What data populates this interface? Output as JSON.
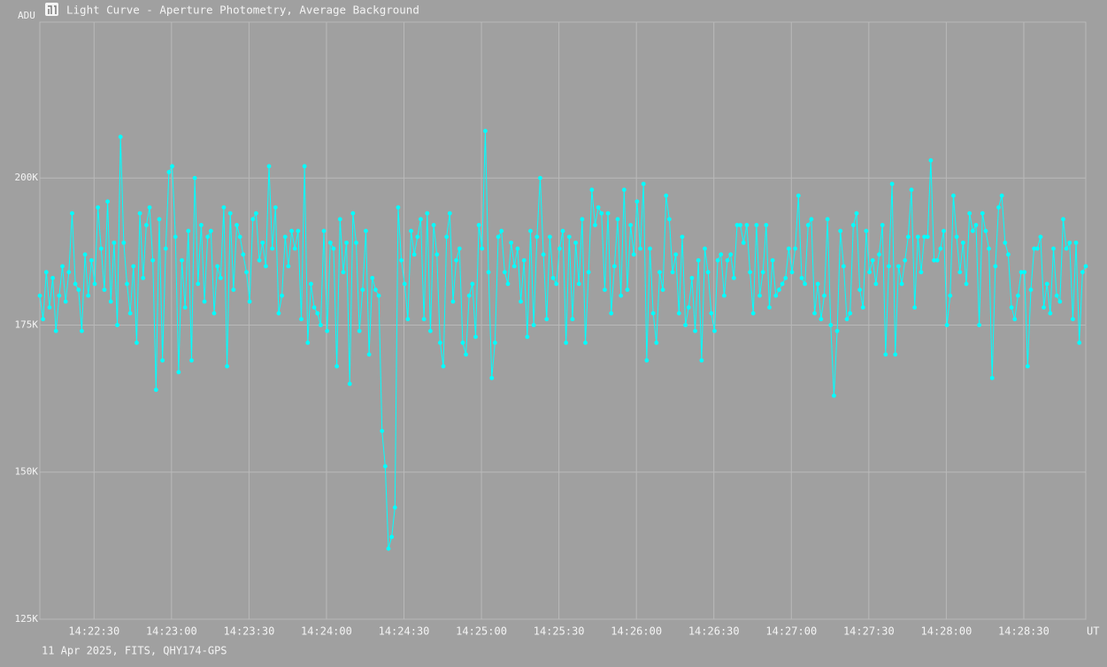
{
  "chart_data": {
    "type": "line",
    "title": "Light Curve - Aperture Photometry, Average Background",
    "y_label": "ADU",
    "x_label": "UT",
    "footer": "11 Apr 2025, FITS, QHY174-GPS",
    "grid": true,
    "xlim": [
      51729,
      52134
    ],
    "ylim": [
      125000,
      226500
    ],
    "xticks": [
      {
        "value": 51750,
        "label": "14:22:30"
      },
      {
        "value": 51780,
        "label": "14:23:00"
      },
      {
        "value": 51810,
        "label": "14:23:30"
      },
      {
        "value": 51840,
        "label": "14:24:00"
      },
      {
        "value": 51870,
        "label": "14:24:30"
      },
      {
        "value": 51900,
        "label": "14:25:00"
      },
      {
        "value": 51930,
        "label": "14:25:30"
      },
      {
        "value": 51960,
        "label": "14:26:00"
      },
      {
        "value": 51990,
        "label": "14:26:30"
      },
      {
        "value": 52020,
        "label": "14:27:00"
      },
      {
        "value": 52050,
        "label": "14:27:30"
      },
      {
        "value": 52080,
        "label": "14:28:00"
      },
      {
        "value": 52110,
        "label": "14:28:30"
      }
    ],
    "yticks": [
      {
        "value": 125000,
        "label": "125K"
      },
      {
        "value": 150000,
        "label": "150K"
      },
      {
        "value": 175000,
        "label": "175K"
      },
      {
        "value": 200000,
        "label": "200K"
      }
    ],
    "color": "#00ffff",
    "x": [
      51729,
      51730.25,
      51731.5,
      51732.75,
      51734,
      51735.25,
      51736.5,
      51737.75,
      51739,
      51740.25,
      51741.5,
      51742.75,
      51744,
      51745.25,
      51746.5,
      51747.75,
      51749,
      51750.25,
      51751.5,
      51752.75,
      51754,
      51755.25,
      51756.5,
      51757.75,
      51759,
      51760.25,
      51761.5,
      51762.75,
      51764,
      51765.25,
      51766.5,
      51767.75,
      51769,
      51770.25,
      51771.5,
      51772.75,
      51774,
      51775.25,
      51776.5,
      51777.75,
      51779,
      51780.25,
      51781.5,
      51782.75,
      51784,
      51785.25,
      51786.5,
      51787.75,
      51789,
      51790.25,
      51791.5,
      51792.75,
      51794,
      51795.25,
      51796.5,
      51797.75,
      51799,
      51800.25,
      51801.5,
      51802.75,
      51804,
      51805.25,
      51806.5,
      51807.75,
      51809,
      51810.25,
      51811.5,
      51812.75,
      51814,
      51815.25,
      51816.5,
      51817.75,
      51819,
      51820.25,
      51821.5,
      51822.75,
      51824,
      51825.25,
      51826.5,
      51827.75,
      51829,
      51830.25,
      51831.5,
      51832.75,
      51834,
      51835.25,
      51836.5,
      51837.75,
      51839,
      51840.25,
      51841.5,
      51842.75,
      51844,
      51845.25,
      51846.5,
      51847.75,
      51849,
      51850.25,
      51851.5,
      51852.75,
      51854,
      51855.25,
      51856.5,
      51857.75,
      51859,
      51860.25,
      51861.5,
      51862.75,
      51864,
      51865.25,
      51866.5,
      51867.75,
      51869,
      51870.25,
      51871.5,
      51872.75,
      51874,
      51875.25,
      51876.5,
      51877.75,
      51879,
      51880.25,
      51881.5,
      51882.75,
      51884,
      51885.25,
      51886.5,
      51887.75,
      51889,
      51890.25,
      51891.5,
      51892.75,
      51894,
      51895.25,
      51896.5,
      51897.75,
      51899,
      51900.25,
      51901.5,
      51902.75,
      51904,
      51905.25,
      51906.5,
      51907.75,
      51909,
      51910.25,
      51911.5,
      51912.75,
      51914,
      51915.25,
      51916.5,
      51917.75,
      51919,
      51920.25,
      51921.5,
      51922.75,
      51924,
      51925.25,
      51926.5,
      51927.75,
      51929,
      51930.25,
      51931.5,
      51932.75,
      51934,
      51935.25,
      51936.5,
      51937.75,
      51939,
      51940.25,
      51941.5,
      51942.75,
      51944,
      51945.25,
      51946.5,
      51947.75,
      51949,
      51950.25,
      51951.5,
      51952.75,
      51954,
      51955.25,
      51956.5,
      51957.75,
      51959,
      51960.25,
      51961.5,
      51962.75,
      51964,
      51965.25,
      51966.5,
      51967.75,
      51969,
      51970.25,
      51971.5,
      51972.75,
      51974,
      51975.25,
      51976.5,
      51977.75,
      51979,
      51980.25,
      51981.5,
      51982.75,
      51984,
      51985.25,
      51986.5,
      51987.75,
      51989,
      51990.25,
      51991.5,
      51992.75,
      51994,
      51995.25,
      51996.5,
      51997.75,
      51999,
      52000.25,
      52001.5,
      52002.75,
      52004,
      52005.25,
      52006.5,
      52007.75,
      52009,
      52010.25,
      52011.5,
      52012.75,
      52014,
      52015.25,
      52016.5,
      52017.75,
      52019,
      52020.25,
      52021.5,
      52022.75,
      52024,
      52025.25,
      52026.5,
      52027.75,
      52029,
      52030.25,
      52031.5,
      52032.75,
      52034,
      52035.25,
      52036.5,
      52037.75,
      52039,
      52040.25,
      52041.5,
      52042.75,
      52044,
      52045.25,
      52046.5,
      52047.75,
      52049,
      52050.25,
      52051.5,
      52052.75,
      52054,
      52055.25,
      52056.5,
      52057.75,
      52059,
      52060.25,
      52061.5,
      52062.75,
      52064,
      52065.25,
      52066.5,
      52067.75,
      52069,
      52070.25,
      52071.5,
      52072.75,
      52074,
      52075.25,
      52076.5,
      52077.75,
      52079,
      52080.25,
      52081.5,
      52082.75,
      52084,
      52085.25,
      52086.5,
      52087.75,
      52089,
      52090.25,
      52091.5,
      52092.75,
      52094,
      52095.25,
      52096.5,
      52097.75,
      52099,
      52100.25,
      52101.5,
      52102.75,
      52104,
      52105.25,
      52106.5,
      52107.75,
      52109,
      52110.25,
      52111.5,
      52112.75,
      52114,
      52115.25,
      52116.5,
      52117.75,
      52119,
      52120.25,
      52121.5,
      52122.75,
      52124,
      52125.25,
      52126.5,
      52127.75,
      52129,
      52130.25,
      52131.5,
      52132.75,
      52134
    ],
    "values": [
      180000,
      176000,
      184000,
      178000,
      183000,
      174000,
      180000,
      185000,
      179000,
      184000,
      194000,
      182000,
      181000,
      174000,
      187000,
      180000,
      186000,
      182000,
      195000,
      188000,
      181000,
      196000,
      179000,
      189000,
      175000,
      207000,
      189000,
      182000,
      177000,
      185000,
      172000,
      194000,
      183000,
      192000,
      195000,
      186000,
      164000,
      193000,
      169000,
      188000,
      201000,
      202000,
      190000,
      167000,
      186000,
      178000,
      191000,
      169000,
      200000,
      182000,
      192000,
      179000,
      190000,
      191000,
      177000,
      185000,
      183000,
      195000,
      168000,
      194000,
      181000,
      192000,
      190000,
      187000,
      184000,
      179000,
      193000,
      194000,
      186000,
      189000,
      185000,
      202000,
      188000,
      195000,
      177000,
      180000,
      190000,
      185000,
      191000,
      188000,
      191000,
      176000,
      202000,
      172000,
      182000,
      178000,
      177000,
      175000,
      191000,
      174000,
      189000,
      188000,
      168000,
      193000,
      184000,
      189000,
      165000,
      194000,
      189000,
      174000,
      181000,
      191000,
      170000,
      183000,
      181000,
      180000,
      157000,
      151000,
      137000,
      139000,
      144000,
      195000,
      186000,
      182000,
      176000,
      191000,
      187000,
      190000,
      193000,
      176000,
      194000,
      174000,
      192000,
      187000,
      172000,
      168000,
      190000,
      194000,
      179000,
      186000,
      188000,
      172000,
      170000,
      180000,
      182000,
      173000,
      192000,
      188000,
      208000,
      184000,
      166000,
      172000,
      190000,
      191000,
      184000,
      182000,
      189000,
      185000,
      188000,
      179000,
      186000,
      173000,
      191000,
      175000,
      190000,
      200000,
      187000,
      176000,
      190000,
      183000,
      182000,
      188000,
      191000,
      172000,
      190000,
      176000,
      189000,
      182000,
      193000,
      172000,
      184000,
      198000,
      192000,
      195000,
      194000,
      181000,
      194000,
      177000,
      185000,
      193000,
      180000,
      198000,
      181000,
      192000,
      187000,
      196000,
      188000,
      199000,
      169000,
      188000,
      177000,
      172000,
      184000,
      181000,
      197000,
      193000,
      184000,
      187000,
      177000,
      190000,
      175000,
      178000,
      183000,
      174000,
      186000,
      169000,
      188000,
      184000,
      177000,
      174000,
      186000,
      187000,
      180000,
      186000,
      187000,
      183000,
      192000,
      192000,
      189000,
      192000,
      184000,
      177000,
      192000,
      180000,
      184000,
      192000,
      178000,
      186000,
      180000,
      181000,
      182000,
      183000,
      188000,
      184000,
      188000,
      197000,
      183000,
      182000,
      192000,
      193000,
      177000,
      182000,
      176000,
      180000,
      193000,
      175000,
      163000,
      174000,
      191000,
      185000,
      176000,
      177000,
      192000,
      194000,
      181000,
      178000,
      191000,
      184000,
      186000,
      182000,
      187000,
      192000,
      170000,
      185000,
      199000,
      170000,
      185000,
      182000,
      186000,
      190000,
      198000,
      178000,
      190000,
      184000,
      190000,
      190000,
      203000,
      186000,
      186000,
      188000,
      191000,
      175000,
      180000,
      197000,
      190000,
      184000,
      189000,
      182000,
      194000,
      191000,
      192000,
      175000,
      194000,
      191000,
      188000,
      166000,
      185000,
      195000,
      197000,
      189000,
      187000,
      178000,
      176000,
      180000,
      184000,
      184000,
      168000,
      181000,
      188000,
      188000,
      190000,
      178000,
      182000,
      177000,
      188000,
      180000,
      179000,
      193000,
      188000,
      189000,
      176000,
      189000,
      172000,
      184000,
      185000
    ]
  }
}
